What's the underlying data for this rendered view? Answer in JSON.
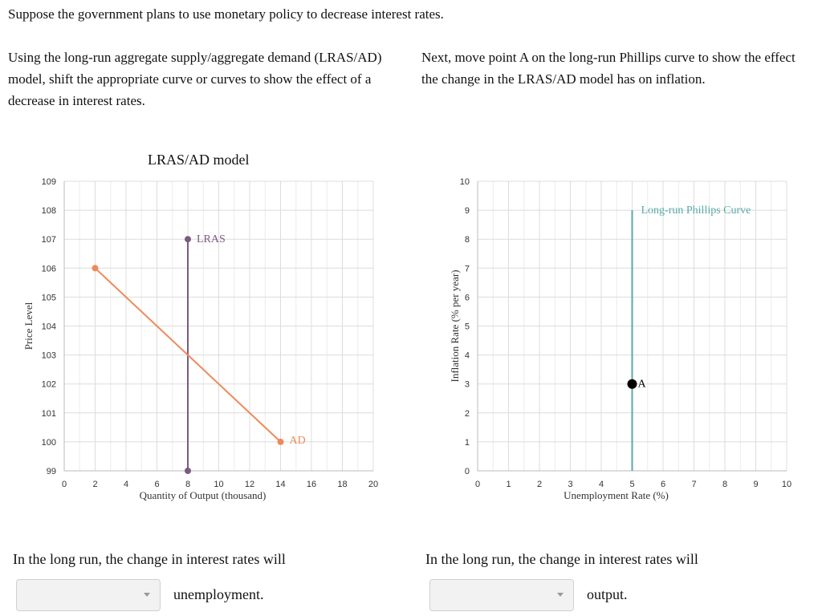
{
  "header": {
    "intro": "Suppose the government plans to use monetary policy to decrease interest rates.",
    "left_question": "Using the long-run aggregate supply/aggregate demand (LRAS/AD) model, shift the appropriate curve or curves to show the effect of a decrease in interest rates.",
    "right_question": "Next, move point A on the long-run Phillips curve to show the effect the change in the LRAS/AD model has on inflation."
  },
  "chart_data": [
    {
      "type": "line",
      "title": "LRAS/AD model",
      "xlabel": "Quantity of Output (thousand)",
      "ylabel": "Price Level",
      "xlim": [
        0,
        20
      ],
      "ylim": [
        99,
        109
      ],
      "xticks": [
        0,
        2,
        4,
        6,
        8,
        10,
        12,
        14,
        16,
        18,
        20
      ],
      "yticks": [
        99,
        100,
        101,
        102,
        103,
        104,
        105,
        106,
        107,
        108,
        109
      ],
      "grid": true,
      "series": [
        {
          "name": "LRAS",
          "color": "#7b5a80",
          "points": [
            [
              8,
              99
            ],
            [
              8,
              107
            ]
          ]
        },
        {
          "name": "AD",
          "color": "#ee8a5a",
          "points": [
            [
              2,
              106
            ],
            [
              14,
              100
            ]
          ]
        }
      ]
    },
    {
      "type": "line",
      "title": "",
      "xlabel": "Unemployment Rate (%)",
      "ylabel": "Inflation Rate (% per year)",
      "xlim": [
        0,
        10
      ],
      "ylim": [
        0,
        10
      ],
      "xticks": [
        0,
        1,
        2,
        3,
        4,
        5,
        6,
        7,
        8,
        9,
        10
      ],
      "yticks": [
        0,
        1,
        2,
        3,
        4,
        5,
        6,
        7,
        8,
        9,
        10
      ],
      "grid": true,
      "series": [
        {
          "name": "Long-run Phillips Curve",
          "color": "#5aaaaa",
          "points": [
            [
              5,
              0
            ],
            [
              5,
              9
            ]
          ]
        }
      ],
      "points": [
        {
          "label": "A",
          "x": 5,
          "y": 3,
          "color": "#000000"
        }
      ]
    }
  ],
  "questions": {
    "left": {
      "prompt": "In the long run, the change in interest rates will",
      "selected": "",
      "suffix": "unemployment."
    },
    "right": {
      "prompt": "In the long run, the change in interest rates will",
      "selected": "",
      "suffix": "output."
    }
  },
  "icons": {
    "dropdown": "chevron-down-icon"
  }
}
